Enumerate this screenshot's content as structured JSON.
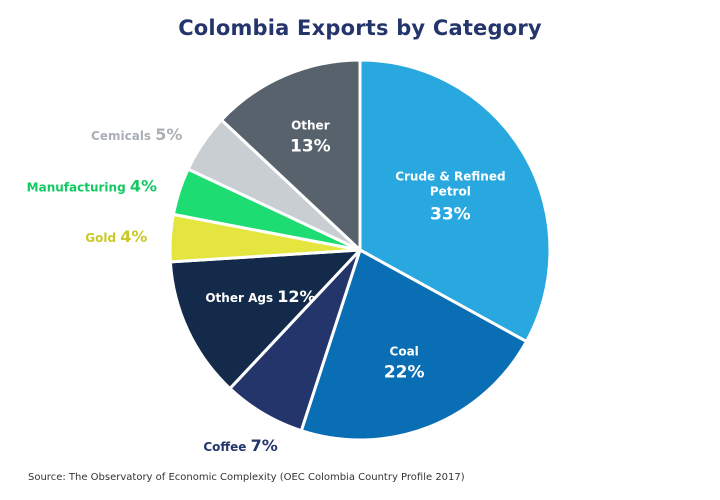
{
  "chart_data": {
    "type": "pie",
    "title": "Colombia Exports by Category",
    "source": "Source: The Observatory of Economic Complexity (OEC Colombia Country Profile 2017)",
    "slices": [
      {
        "name": "Crude & Refined Petrol",
        "value": 33,
        "label": "33%",
        "color": "#29a8e0",
        "label_color": "#ffffff"
      },
      {
        "name": "Coal",
        "value": 22,
        "label": "22%",
        "color": "#0a6eb4",
        "label_color": "#ffffff"
      },
      {
        "name": "Coffee",
        "value": 7,
        "label": "7%",
        "color": "#24356b",
        "label_color": "#24356b"
      },
      {
        "name": "Other Ags",
        "value": 12,
        "label": "12%",
        "color": "#142a4a",
        "label_color": "#ffffff"
      },
      {
        "name": "Gold",
        "value": 4,
        "label": "4%",
        "color": "#e5e540",
        "label_color": "#c9c92a"
      },
      {
        "name": "Manufacturing",
        "value": 4,
        "label": "4%",
        "color": "#1ddd72",
        "label_color": "#12c964"
      },
      {
        "name": "Cemicals",
        "value": 5,
        "label": "5%",
        "color": "#c9ced2",
        "label_color": "#aab0b6"
      },
      {
        "name": "Other",
        "value": 13,
        "label": "13%",
        "color": "#58626d",
        "label_color": "#ffffff"
      }
    ]
  }
}
